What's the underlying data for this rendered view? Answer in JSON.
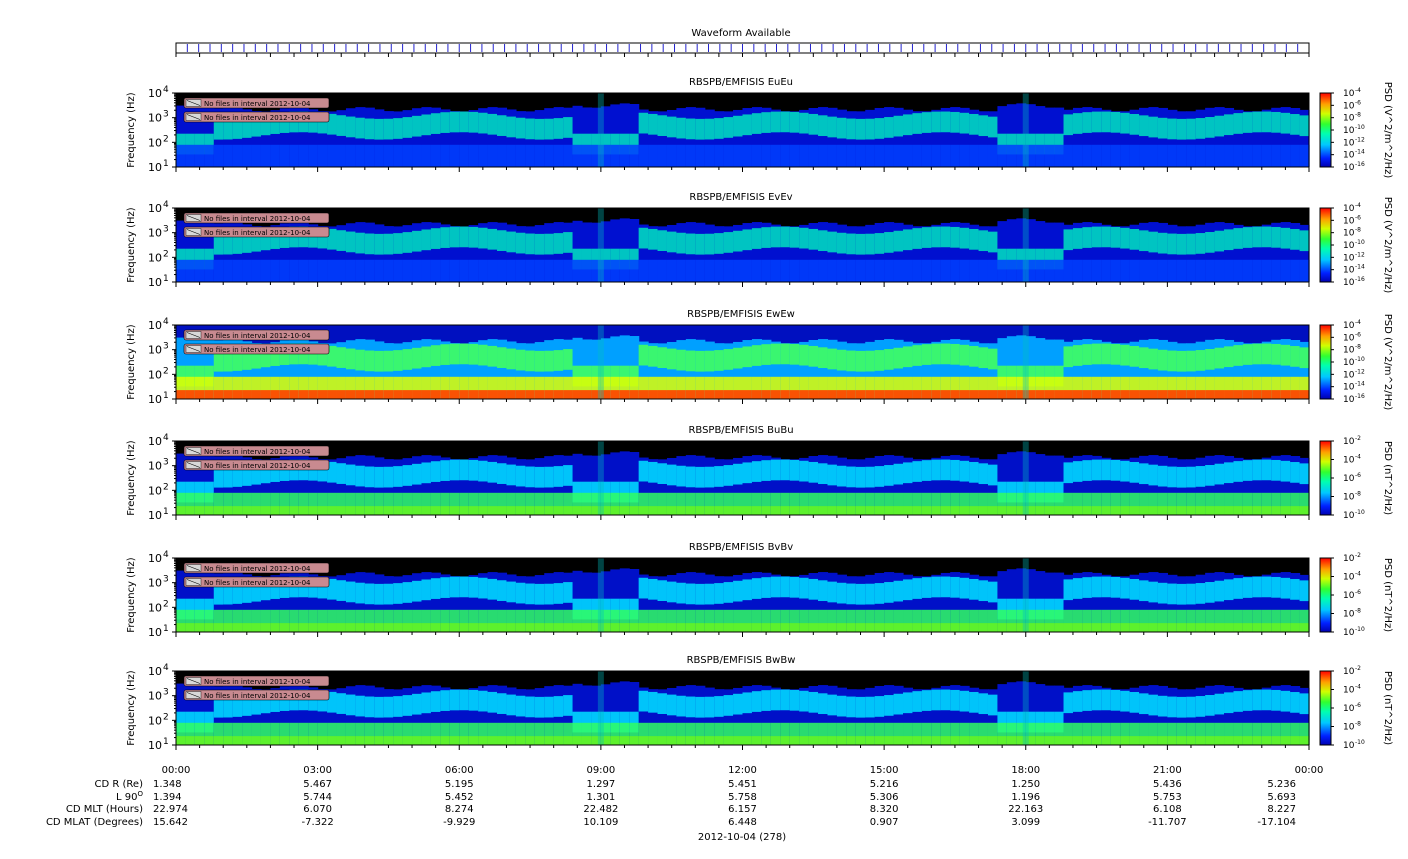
{
  "colors": {
    "background_black": "#000000",
    "waveform_bar": "#2222cc"
  },
  "waveform": {
    "title": "Waveform Available"
  },
  "panels": [
    {
      "title": "RBSPB/EMFISIS  EuEu",
      "ylabel": "Frequency (Hz)",
      "cbar_label": "PSD (V^2/m^2/Hz)",
      "cbar_ticks": [
        "10-4",
        "10-6",
        "10-8",
        "10-10",
        "10-12",
        "10-14",
        "10-16"
      ],
      "cbar_exp": [
        "-4",
        "-6",
        "-8",
        "-10",
        "-12",
        "-14",
        "-16"
      ],
      "style": "E"
    },
    {
      "title": "RBSPB/EMFISIS  EvEv",
      "ylabel": "Frequency (Hz)",
      "cbar_label": "PSD (V^2/m^2/Hz)",
      "cbar_ticks": [
        "10-4",
        "10-6",
        "10-8",
        "10-10",
        "10-12",
        "10-14",
        "10-16"
      ],
      "cbar_exp": [
        "-4",
        "-6",
        "-8",
        "-10",
        "-12",
        "-14",
        "-16"
      ],
      "style": "E"
    },
    {
      "title": "RBSPB/EMFISIS  EwEw",
      "ylabel": "Frequency (Hz)",
      "cbar_label": "PSD (V^2/m^2/Hz)",
      "cbar_ticks": [
        "10-4",
        "10-6",
        "10-8",
        "10-10",
        "10-12",
        "10-14",
        "10-16"
      ],
      "cbar_exp": [
        "-4",
        "-6",
        "-8",
        "-10",
        "-12",
        "-14",
        "-16"
      ],
      "style": "Ew"
    },
    {
      "title": "RBSPB/EMFISIS  BuBu",
      "ylabel": "Frequency (Hz)",
      "cbar_label": "PSD (nT^2/Hz)",
      "cbar_ticks": [
        "10-2",
        "10-4",
        "10-6",
        "10-8",
        "10-10"
      ],
      "cbar_exp": [
        "-2",
        "-4",
        "-6",
        "-8",
        "-10"
      ],
      "style": "B"
    },
    {
      "title": "RBSPB/EMFISIS  BvBv",
      "ylabel": "Frequency (Hz)",
      "cbar_label": "PSD (nT^2/Hz)",
      "cbar_ticks": [
        "10-2",
        "10-4",
        "10-6",
        "10-8",
        "10-10"
      ],
      "cbar_exp": [
        "-2",
        "-4",
        "-6",
        "-8",
        "-10"
      ],
      "style": "B"
    },
    {
      "title": "RBSPB/EMFISIS  BwBw",
      "ylabel": "Frequency (Hz)",
      "cbar_label": "PSD (nT^2/Hz)",
      "cbar_ticks": [
        "10-2",
        "10-4",
        "10-6",
        "10-8",
        "10-10"
      ],
      "cbar_exp": [
        "-2",
        "-4",
        "-6",
        "-8",
        "-10"
      ],
      "style": "B"
    }
  ],
  "no_files_label": "No files in interval 2012-10-04",
  "y_ticks": [
    "4",
    "3",
    "2",
    "1"
  ],
  "x_ticks": [
    "00:00",
    "03:00",
    "06:00",
    "09:00",
    "12:00",
    "15:00",
    "18:00",
    "21:00",
    "00:00"
  ],
  "ephemeris": {
    "labels": [
      "CD R (Re)",
      "L 90",
      "CD MLT (Hours)",
      "CD MLAT (Degrees)"
    ],
    "l_superscript": "O",
    "rows": [
      [
        "1.348",
        "5.467",
        "5.195",
        "1.297",
        "5.451",
        "5.216",
        "1.250",
        "5.436",
        "5.236"
      ],
      [
        "1.394",
        "5.744",
        "5.452",
        "1.301",
        "5.758",
        "5.306",
        "1.196",
        "5.753",
        "5.693"
      ],
      [
        "22.974",
        "6.070",
        "8.274",
        "22.482",
        "6.157",
        "8.320",
        "22.163",
        "6.108",
        "8.227"
      ],
      [
        "15.642",
        "-7.322",
        "-9.929",
        "10.109",
        "6.448",
        "0.907",
        "3.099",
        "-11.707",
        "-17.104"
      ]
    ]
  },
  "date_label": "2012-10-04 (278)",
  "chart_data": {
    "type": "heatmap",
    "x": [
      "00:00",
      "03:00",
      "06:00",
      "09:00",
      "12:00",
      "15:00",
      "18:00",
      "21:00",
      "00:00"
    ],
    "ylim": [
      10,
      10000
    ],
    "y_scale": "log",
    "series": [
      {
        "name": "EuEu",
        "zlim": [
          "10-16",
          "10-4"
        ]
      },
      {
        "name": "EvEv",
        "zlim": [
          "10-16",
          "10-4"
        ]
      },
      {
        "name": "EwEw",
        "zlim": [
          "10-16",
          "10-4"
        ]
      },
      {
        "name": "BuBu",
        "zlim": [
          "10-10",
          "10-2"
        ]
      },
      {
        "name": "BvBv",
        "zlim": [
          "10-10",
          "10-2"
        ]
      },
      {
        "name": "BwBw",
        "zlim": [
          "10-10",
          "10-2"
        ]
      }
    ]
  }
}
